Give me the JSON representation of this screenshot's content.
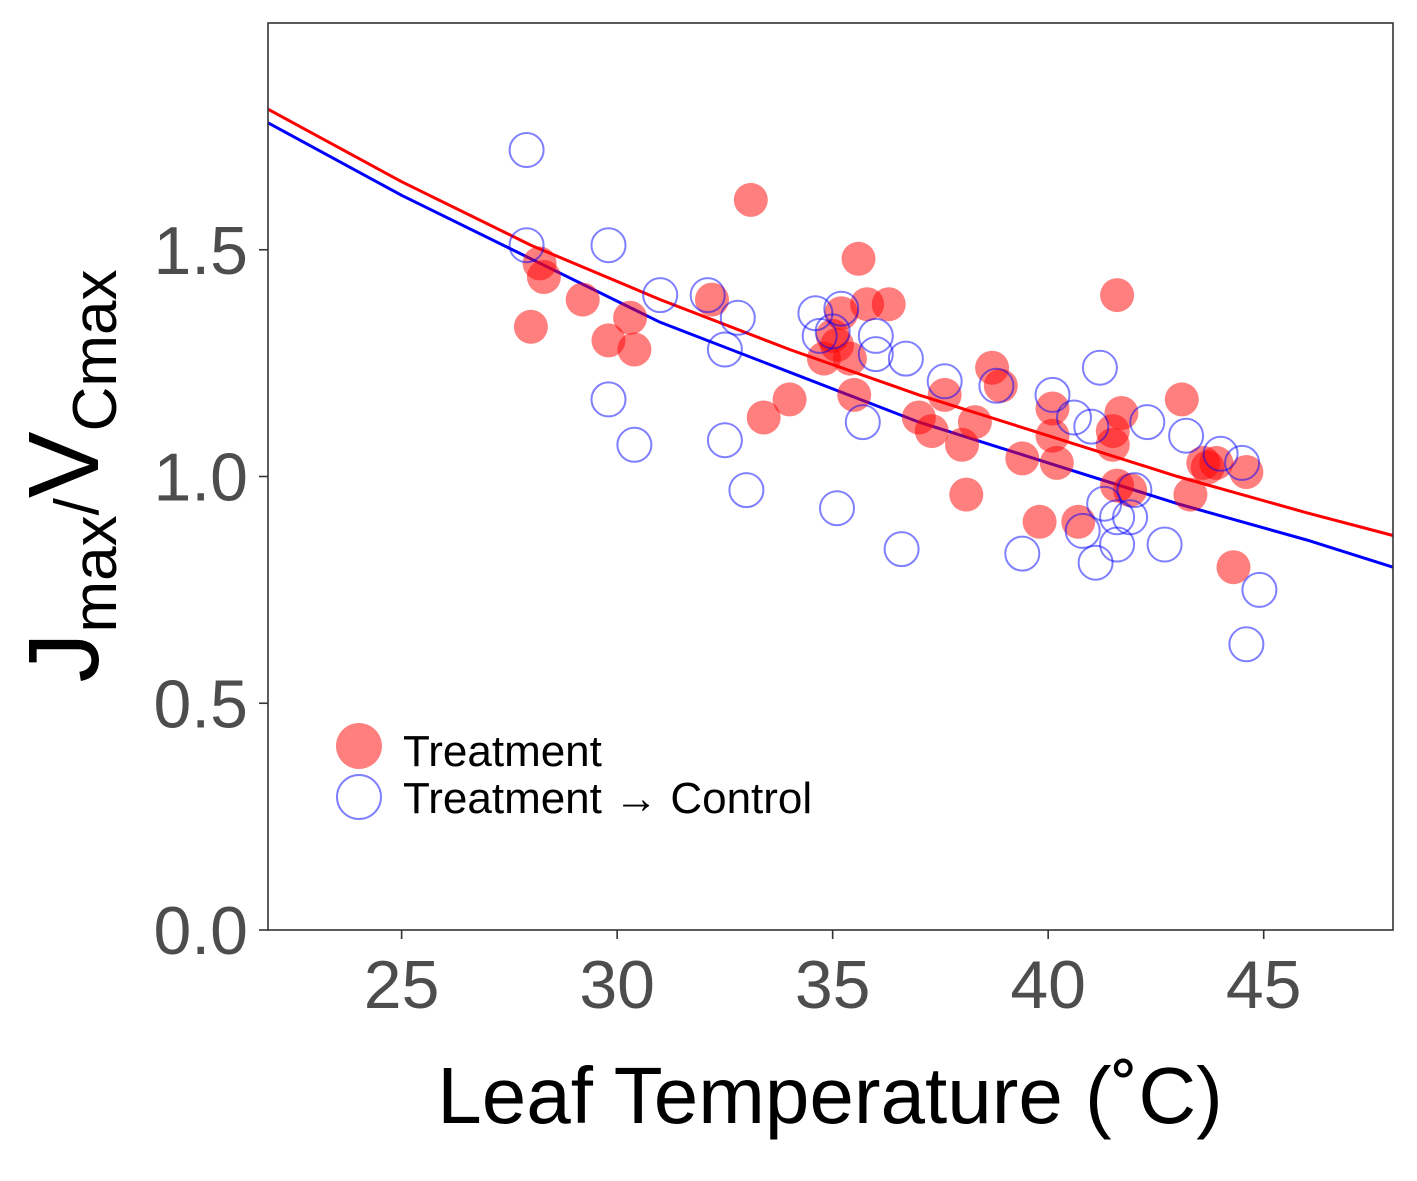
{
  "chart_data": {
    "type": "scatter",
    "title": "",
    "xlabel": "Leaf Temperature (˚C)",
    "ylabel": {
      "j": "J",
      "j_sub": "max",
      "sep": "/",
      "v": "V",
      "v_sub": "Cmax"
    },
    "xlim": [
      21.9,
      48.0
    ],
    "ylim": [
      0,
      2.0
    ],
    "x_ticks": [
      25,
      30,
      35,
      40,
      45
    ],
    "x_tick_labels": [
      "25",
      "30",
      "35",
      "40",
      "45"
    ],
    "y_ticks": [
      0,
      0.5,
      1.0,
      1.5
    ],
    "y_tick_labels": [
      "0.0",
      "0.5",
      "1.0",
      "1.5"
    ],
    "grid": false,
    "legend_position": "bottom-left",
    "series": [
      {
        "name": "Treatment",
        "marker": "filled-circle",
        "color": "#ff0000",
        "opacity": 0.5,
        "points": [
          [
            28.0,
            1.33
          ],
          [
            28.2,
            1.47
          ],
          [
            28.3,
            1.44
          ],
          [
            29.2,
            1.39
          ],
          [
            29.8,
            1.3
          ],
          [
            30.3,
            1.35
          ],
          [
            30.4,
            1.28
          ],
          [
            32.2,
            1.39
          ],
          [
            33.1,
            1.61
          ],
          [
            33.4,
            1.13
          ],
          [
            34.0,
            1.17
          ],
          [
            34.8,
            1.26
          ],
          [
            35.0,
            1.31
          ],
          [
            35.1,
            1.29
          ],
          [
            35.2,
            1.36
          ],
          [
            35.4,
            1.26
          ],
          [
            35.5,
            1.18
          ],
          [
            35.6,
            1.48
          ],
          [
            35.8,
            1.38
          ],
          [
            36.3,
            1.38
          ],
          [
            37.0,
            1.13
          ],
          [
            37.3,
            1.1
          ],
          [
            37.6,
            1.18
          ],
          [
            38.0,
            1.07
          ],
          [
            38.1,
            0.96
          ],
          [
            38.3,
            1.12
          ],
          [
            38.7,
            1.24
          ],
          [
            38.9,
            1.2
          ],
          [
            39.4,
            1.04
          ],
          [
            39.8,
            0.9
          ],
          [
            40.1,
            1.15
          ],
          [
            40.1,
            1.09
          ],
          [
            40.2,
            1.03
          ],
          [
            40.7,
            0.9
          ],
          [
            41.5,
            1.1
          ],
          [
            41.5,
            1.07
          ],
          [
            41.6,
            1.4
          ],
          [
            41.6,
            0.98
          ],
          [
            41.7,
            1.14
          ],
          [
            41.9,
            0.97
          ],
          [
            43.1,
            1.17
          ],
          [
            43.3,
            0.96
          ],
          [
            43.6,
            1.03
          ],
          [
            43.7,
            1.02
          ],
          [
            43.9,
            1.03
          ],
          [
            44.3,
            0.8
          ],
          [
            44.6,
            1.01
          ]
        ]
      },
      {
        "name": "Treatment →  Control",
        "marker": "open-circle",
        "color": "#0000ff",
        "opacity": 0.5,
        "points": [
          [
            27.9,
            1.51
          ],
          [
            27.9,
            1.72
          ],
          [
            29.8,
            1.51
          ],
          [
            29.8,
            1.17
          ],
          [
            30.4,
            1.07
          ],
          [
            31.0,
            1.4
          ],
          [
            32.1,
            1.4
          ],
          [
            32.5,
            1.28
          ],
          [
            32.5,
            1.08
          ],
          [
            32.8,
            1.35
          ],
          [
            33.0,
            0.97
          ],
          [
            34.6,
            1.36
          ],
          [
            34.7,
            1.31
          ],
          [
            35.0,
            1.32
          ],
          [
            35.1,
            0.93
          ],
          [
            35.2,
            1.37
          ],
          [
            35.7,
            1.12
          ],
          [
            36.0,
            1.31
          ],
          [
            36.0,
            1.27
          ],
          [
            36.6,
            0.84
          ],
          [
            36.7,
            1.26
          ],
          [
            37.6,
            1.21
          ],
          [
            38.8,
            1.2
          ],
          [
            39.4,
            0.83
          ],
          [
            40.1,
            1.18
          ],
          [
            40.6,
            1.13
          ],
          [
            40.8,
            0.88
          ],
          [
            41.0,
            1.11
          ],
          [
            41.1,
            0.81
          ],
          [
            41.2,
            1.24
          ],
          [
            41.3,
            0.94
          ],
          [
            41.6,
            0.91
          ],
          [
            41.6,
            0.85
          ],
          [
            41.9,
            0.91
          ],
          [
            42.0,
            0.97
          ],
          [
            42.3,
            1.12
          ],
          [
            42.7,
            0.85
          ],
          [
            43.2,
            1.09
          ],
          [
            44.0,
            1.05
          ],
          [
            44.5,
            1.03
          ],
          [
            44.6,
            0.63
          ],
          [
            44.9,
            0.75
          ]
        ]
      }
    ],
    "fit_lines": [
      {
        "series": "Treatment",
        "color": "#ff0000",
        "x": [
          21.9,
          25,
          28,
          31,
          34,
          37,
          40,
          43,
          46,
          48.0
        ],
        "y": [
          1.81,
          1.65,
          1.51,
          1.39,
          1.28,
          1.18,
          1.09,
          1.0,
          0.92,
          0.87
        ]
      },
      {
        "series": "Treatment →  Control",
        "color": "#0000ff",
        "x": [
          21.9,
          25,
          28,
          31,
          34,
          37,
          40,
          43,
          46,
          48.0
        ],
        "y": [
          1.78,
          1.62,
          1.48,
          1.34,
          1.23,
          1.12,
          1.03,
          0.94,
          0.86,
          0.8
        ]
      }
    ]
  }
}
